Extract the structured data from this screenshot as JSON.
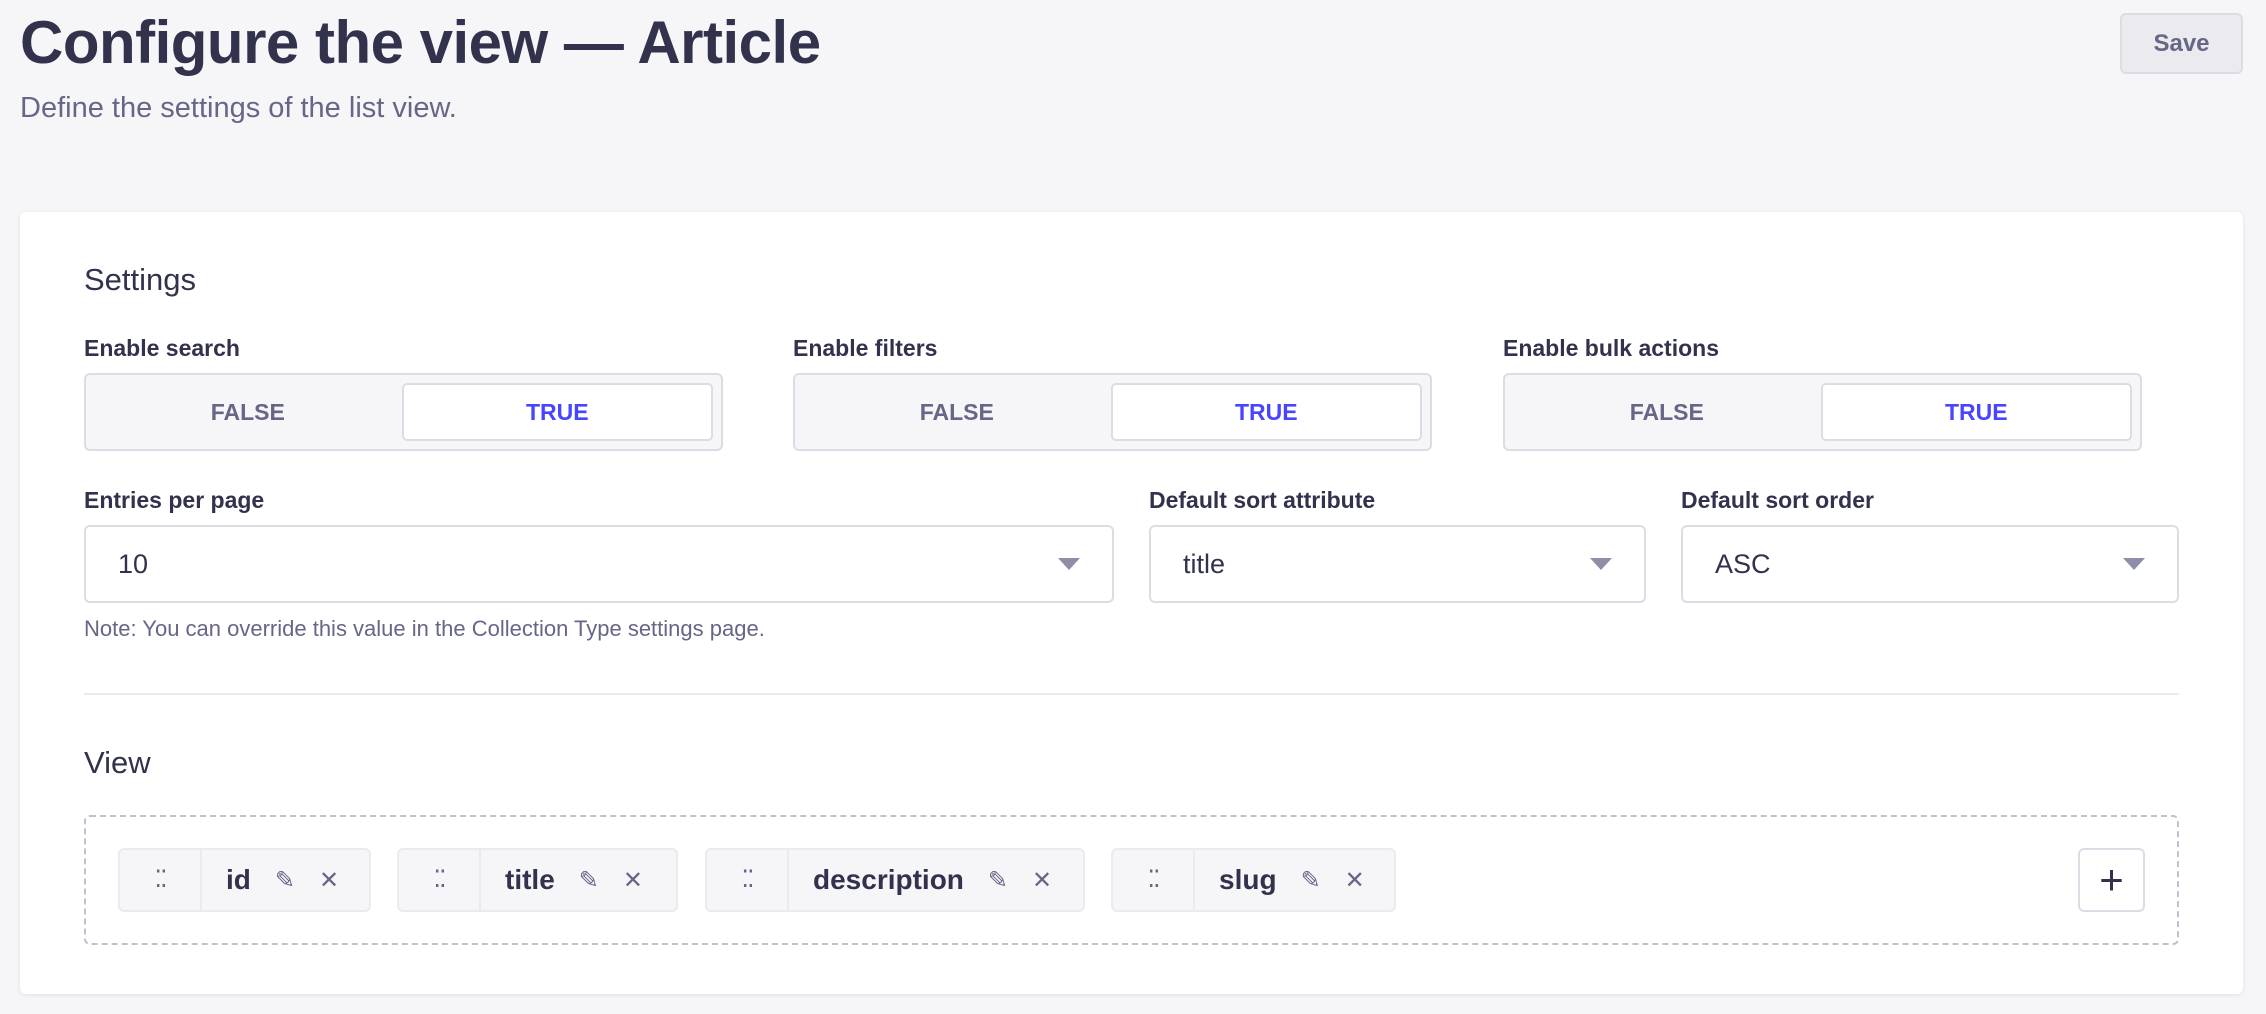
{
  "header": {
    "title": "Configure the view — Article",
    "subtitle": "Define the settings of the list view.",
    "save_label": "Save"
  },
  "settings": {
    "heading": "Settings",
    "toggles": [
      {
        "label": "Enable search",
        "false": "FALSE",
        "true": "TRUE",
        "value": true
      },
      {
        "label": "Enable filters",
        "false": "FALSE",
        "true": "TRUE",
        "value": true
      },
      {
        "label": "Enable bulk actions",
        "false": "FALSE",
        "true": "TRUE",
        "value": true
      }
    ],
    "selects": [
      {
        "label": "Entries per page",
        "value": "10"
      },
      {
        "label": "Default sort attribute",
        "value": "title"
      },
      {
        "label": "Default sort order",
        "value": "ASC"
      }
    ],
    "note": "Note: You can override this value in the Collection Type settings page."
  },
  "view": {
    "heading": "View",
    "fields": [
      "id",
      "title",
      "description",
      "slug"
    ],
    "add_label": "+"
  },
  "colors": {
    "accent": "#4945ff",
    "text": "#32324d",
    "muted": "#666687",
    "background": "#f6f6f9"
  }
}
